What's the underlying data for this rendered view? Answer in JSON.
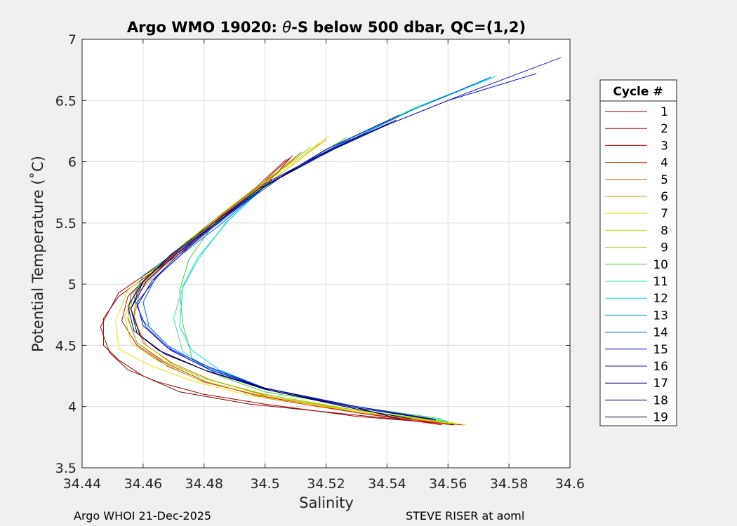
{
  "chart_data": {
    "type": "line",
    "title_prefix": "Argo WMO 19020: ",
    "title_theta": "θ",
    "title_suffix": "-S below 500 dbar,  QC=(1,2)",
    "xlabel": "Salinity",
    "ylabel": "Potential Temperature (˚C)",
    "xlim": [
      34.44,
      34.6
    ],
    "ylim": [
      3.5,
      7
    ],
    "xticks": [
      "34.44",
      "34.46",
      "34.48",
      "34.5",
      "34.52",
      "34.54",
      "34.56",
      "34.58",
      "34.6"
    ],
    "yticks": [
      "3.5",
      "4",
      "4.5",
      "5",
      "5.5",
      "6",
      "6.5",
      "7"
    ],
    "grid": true,
    "legend_title": "Cycle #",
    "legend_position": "outside-right",
    "footer_left": "Argo WHOI 21-Dec-2025",
    "footer_right": "STEVE RISER at aoml",
    "series": [
      {
        "name": "1",
        "color": "#800000",
        "salinity": [
          34.509,
          34.5,
          34.486,
          34.475,
          34.462,
          34.452,
          34.447,
          34.447,
          34.452,
          34.46,
          34.472,
          34.495,
          34.53,
          34.562
        ],
        "theta": [
          6.05,
          5.8,
          5.55,
          5.3,
          5.08,
          4.9,
          4.72,
          4.5,
          4.38,
          4.25,
          4.12,
          4.02,
          3.93,
          3.85
        ]
      },
      {
        "name": "2",
        "color": "#a60000",
        "salinity": [
          34.51,
          34.5,
          34.486,
          34.475,
          34.462,
          34.452,
          34.446,
          34.449,
          34.455,
          34.465,
          34.48,
          34.5,
          34.53,
          34.565
        ],
        "theta": [
          6.04,
          5.82,
          5.56,
          5.32,
          5.1,
          4.93,
          4.65,
          4.44,
          4.3,
          4.2,
          4.1,
          4.02,
          3.92,
          3.85
        ]
      },
      {
        "name": "3",
        "color": "#cc0000",
        "salinity": [
          34.508,
          34.498,
          34.485,
          34.474,
          34.463,
          34.455,
          34.453,
          34.458,
          34.468,
          34.48,
          34.5,
          34.53,
          34.558
        ],
        "theta": [
          6.03,
          5.8,
          5.55,
          5.3,
          5.1,
          4.9,
          4.7,
          4.5,
          4.33,
          4.2,
          4.08,
          3.95,
          3.85
        ]
      },
      {
        "name": "4",
        "color": "#d62000",
        "salinity": [
          34.507,
          34.497,
          34.484,
          34.473,
          34.463,
          34.456,
          34.455,
          34.458,
          34.467,
          34.48,
          34.5,
          34.53,
          34.559
        ],
        "theta": [
          6.02,
          5.79,
          5.54,
          5.3,
          5.1,
          4.92,
          4.72,
          4.52,
          4.36,
          4.21,
          4.07,
          3.95,
          3.86
        ]
      },
      {
        "name": "5",
        "color": "#d65a00",
        "salinity": [
          34.512,
          34.5,
          34.486,
          34.475,
          34.465,
          34.458,
          34.457,
          34.46,
          34.469,
          34.482,
          34.5,
          34.53,
          34.56
        ],
        "theta": [
          6.08,
          5.83,
          5.57,
          5.33,
          5.12,
          4.95,
          4.74,
          4.52,
          4.36,
          4.22,
          4.09,
          3.96,
          3.86
        ]
      },
      {
        "name": "6",
        "color": "#d6a000",
        "salinity": [
          34.52,
          34.505,
          34.49,
          34.478,
          34.467,
          34.459,
          34.457,
          34.461,
          34.47,
          34.483,
          34.502,
          34.53,
          34.561
        ],
        "theta": [
          6.18,
          5.9,
          5.62,
          5.37,
          5.15,
          4.95,
          4.72,
          4.5,
          4.35,
          4.21,
          4.08,
          3.96,
          3.86
        ]
      },
      {
        "name": "7",
        "color": "#e6e600",
        "salinity": [
          34.521,
          34.505,
          34.49,
          34.477,
          34.465,
          34.455,
          34.451,
          34.452,
          34.462,
          34.476,
          34.495,
          34.53,
          34.566
        ],
        "theta": [
          6.21,
          5.92,
          5.63,
          5.38,
          5.15,
          4.95,
          4.7,
          4.47,
          4.34,
          4.21,
          4.09,
          3.96,
          3.85
        ]
      },
      {
        "name": "8",
        "color": "#c4e000",
        "salinity": [
          34.518,
          34.502,
          34.488,
          34.476,
          34.466,
          34.458,
          34.454,
          34.456,
          34.465,
          34.478,
          34.497,
          34.53,
          34.562
        ],
        "theta": [
          6.15,
          5.88,
          5.62,
          5.38,
          5.16,
          4.96,
          4.74,
          4.52,
          4.37,
          4.22,
          4.1,
          3.97,
          3.87
        ]
      },
      {
        "name": "9",
        "color": "#7fd600",
        "salinity": [
          34.515,
          34.5,
          34.486,
          34.474,
          34.464,
          34.457,
          34.455,
          34.458,
          34.467,
          34.48,
          34.5,
          34.53,
          34.56
        ],
        "theta": [
          6.12,
          5.84,
          5.58,
          5.34,
          5.13,
          4.93,
          4.73,
          4.52,
          4.37,
          4.23,
          4.1,
          3.97,
          3.87
        ]
      },
      {
        "name": "10",
        "color": "#33d633",
        "salinity": [
          34.527,
          34.51,
          34.494,
          34.482,
          34.475,
          34.472,
          34.473,
          34.476,
          34.485,
          34.5,
          34.53,
          34.558
        ],
        "theta": [
          6.2,
          5.95,
          5.7,
          5.45,
          5.2,
          4.95,
          4.68,
          4.4,
          4.25,
          4.12,
          4.0,
          3.9
        ]
      },
      {
        "name": "11",
        "color": "#2ee6a0",
        "salinity": [
          34.576,
          34.55,
          34.52,
          34.5,
          34.487,
          34.478,
          34.473,
          34.47,
          34.473,
          34.482,
          34.5,
          34.53,
          34.56
        ],
        "theta": [
          6.7,
          6.45,
          6.1,
          5.8,
          5.5,
          5.2,
          4.97,
          4.72,
          4.45,
          4.3,
          4.15,
          4.0,
          3.88
        ]
      },
      {
        "name": "12",
        "color": "#00d9e6",
        "salinity": [
          34.575,
          34.55,
          34.52,
          34.5,
          34.488,
          34.478,
          34.473,
          34.472,
          34.476,
          34.485,
          34.5,
          34.53,
          34.56
        ],
        "theta": [
          6.69,
          6.44,
          6.1,
          5.8,
          5.52,
          5.22,
          4.98,
          4.65,
          4.46,
          4.3,
          4.15,
          4.0,
          3.88
        ]
      },
      {
        "name": "13",
        "color": "#0099e6",
        "salinity": [
          34.573,
          34.548,
          34.52,
          34.5,
          34.485,
          34.47,
          34.46,
          34.457,
          34.46,
          34.468,
          34.48,
          34.5,
          34.53,
          34.556
        ],
        "theta": [
          6.68,
          6.42,
          6.08,
          5.8,
          5.5,
          5.25,
          5.07,
          4.9,
          4.7,
          4.5,
          4.33,
          4.15,
          4.0,
          3.89
        ]
      },
      {
        "name": "14",
        "color": "#005ce6",
        "salinity": [
          34.574,
          34.548,
          34.52,
          34.5,
          34.486,
          34.473,
          34.464,
          34.46,
          34.462,
          34.47,
          34.482,
          34.5,
          34.53,
          34.556
        ],
        "theta": [
          6.69,
          6.42,
          6.08,
          5.8,
          5.5,
          5.25,
          5.05,
          4.85,
          4.65,
          4.45,
          4.3,
          4.15,
          4.0,
          3.89
        ]
      },
      {
        "name": "15",
        "color": "#0000e6",
        "salinity": [
          34.589,
          34.56,
          34.525,
          34.5,
          34.485,
          34.472,
          34.463,
          34.458,
          34.461,
          34.469,
          34.482,
          34.5,
          34.53,
          34.556
        ],
        "theta": [
          6.72,
          6.5,
          6.15,
          5.82,
          5.52,
          5.25,
          5.03,
          4.82,
          4.65,
          4.46,
          4.3,
          4.15,
          4.0,
          3.89
        ]
      },
      {
        "name": "16",
        "color": "#1a1ab3",
        "salinity": [
          34.597,
          34.565,
          34.53,
          34.505,
          34.488,
          34.475,
          34.465,
          34.458,
          34.46,
          34.468,
          34.482,
          34.5,
          34.53,
          34.555
        ],
        "theta": [
          6.85,
          6.55,
          6.2,
          5.87,
          5.57,
          5.3,
          5.07,
          4.85,
          4.66,
          4.48,
          4.32,
          4.15,
          4.0,
          3.9
        ]
      },
      {
        "name": "17",
        "color": "#000080",
        "salinity": [
          34.544,
          34.52,
          34.5,
          34.484,
          34.471,
          34.461,
          34.456,
          34.458,
          34.466,
          34.48,
          34.5,
          34.53,
          34.556
        ],
        "theta": [
          6.38,
          6.1,
          5.8,
          5.5,
          5.25,
          5.02,
          4.8,
          4.6,
          4.45,
          4.3,
          4.15,
          3.99,
          3.89
        ]
      },
      {
        "name": "18",
        "color": "#000099",
        "salinity": [
          34.543,
          34.52,
          34.5,
          34.484,
          34.47,
          34.46,
          34.455,
          34.457,
          34.465,
          34.48,
          34.5,
          34.53,
          34.544
        ],
        "theta": [
          6.34,
          6.08,
          5.8,
          5.5,
          5.25,
          5.02,
          4.82,
          4.62,
          4.46,
          4.3,
          4.14,
          3.99,
          3.9
        ]
      },
      {
        "name": "19",
        "color": "#00003d",
        "salinity": [
          34.54,
          34.518,
          34.498,
          34.482,
          34.469,
          34.46,
          34.456,
          34.459,
          34.467,
          34.482,
          34.502,
          34.53,
          34.548
        ],
        "theta": [
          6.3,
          6.05,
          5.78,
          5.48,
          5.24,
          5.02,
          4.8,
          4.58,
          4.43,
          4.28,
          4.13,
          3.98,
          3.9
        ]
      }
    ]
  }
}
